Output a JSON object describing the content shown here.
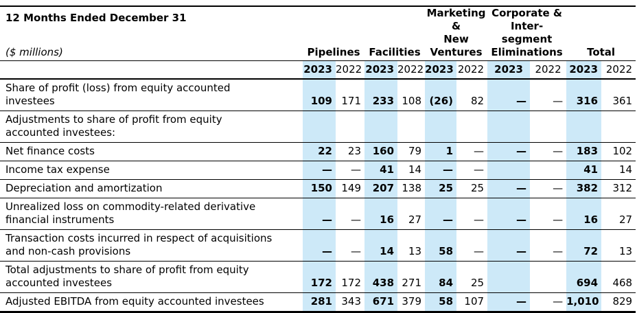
{
  "header": {
    "title": "12 Months Ended December 31",
    "unit_label": "($ millions)",
    "column_groups": [
      {
        "label": "Pipelines"
      },
      {
        "label": "Facilities"
      },
      {
        "label": "Marketing\n&\nNew\nVentures"
      },
      {
        "label": "Corporate &\nInter-\nsegment\nEliminations"
      },
      {
        "label": "Total"
      }
    ],
    "years": [
      "2023",
      "2022"
    ]
  },
  "colors": {
    "highlight_2023": "#cde9f8",
    "text": "#000000",
    "rule": "#000000"
  },
  "table": {
    "rows": [
      {
        "label": "Share of profit (loss) from equity accounted\ninvestees",
        "values": [
          "109",
          "171",
          "233",
          "108",
          "(26)",
          "82",
          "—",
          "—",
          "316",
          "361"
        ]
      },
      {
        "label": "Adjustments to share of profit from equity\naccounted investees:",
        "values": [
          "",
          "",
          "",
          "",
          "",
          "",
          "",
          "",
          "",
          ""
        ]
      },
      {
        "label": "Net finance costs",
        "values": [
          "22",
          "23",
          "160",
          "79",
          "1",
          "—",
          "—",
          "—",
          "183",
          "102"
        ]
      },
      {
        "label": "Income tax expense",
        "values": [
          "—",
          "—",
          "41",
          "14",
          "—",
          "—",
          "",
          "",
          "41",
          "14"
        ]
      },
      {
        "label": "Depreciation and amortization",
        "values": [
          "150",
          "149",
          "207",
          "138",
          "25",
          "25",
          "—",
          "—",
          "382",
          "312"
        ]
      },
      {
        "label": "Unrealized loss on commodity-related derivative\nfinancial instruments",
        "values": [
          "—",
          "—",
          "16",
          "27",
          "—",
          "—",
          "—",
          "—",
          "16",
          "27"
        ]
      },
      {
        "label": "Transaction costs incurred in respect of acquisitions\nand non-cash provisions",
        "values": [
          "—",
          "—",
          "14",
          "13",
          "58",
          "—",
          "—",
          "—",
          "72",
          "13"
        ]
      },
      {
        "label": "Total adjustments to share of profit from equity\naccounted investees",
        "values": [
          "172",
          "172",
          "438",
          "271",
          "84",
          "25",
          "",
          "",
          "694",
          "468"
        ]
      },
      {
        "label": "Adjusted EBITDA from equity accounted investees",
        "values": [
          "281",
          "343",
          "671",
          "379",
          "58",
          "107",
          "—",
          "—",
          "1,010",
          "829"
        ]
      }
    ]
  }
}
